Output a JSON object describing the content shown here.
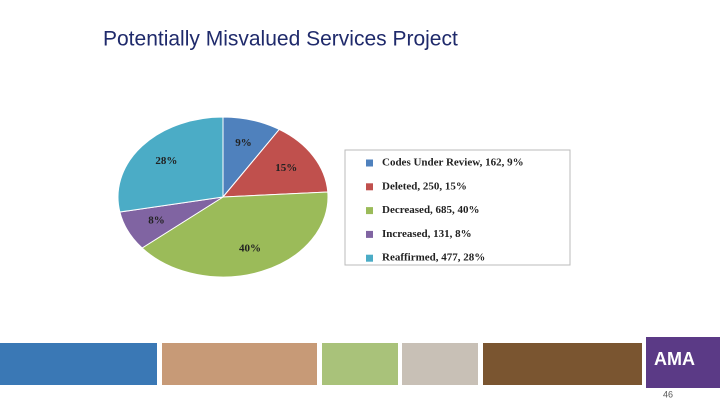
{
  "chart_data": {
    "type": "pie",
    "title": "Potentially Misvalued Services Project",
    "categories": [
      "Codes Under Review, 162, 9%",
      "Deleted, 250, 15%",
      "Decreased, 685, 40%",
      "Increased, 131, 8%",
      "Reaffirmed, 477, 28%"
    ],
    "values": [
      9,
      15,
      40,
      8,
      28
    ],
    "value_labels": [
      "9%",
      "15%",
      "40%",
      "8%",
      "28%"
    ],
    "colors": [
      "#4f81bd",
      "#c0504d",
      "#9bbb59",
      "#8064a2",
      "#4bacc6"
    ],
    "legend": "right"
  },
  "footer": {
    "logo": "AMA",
    "page_number": "46"
  }
}
